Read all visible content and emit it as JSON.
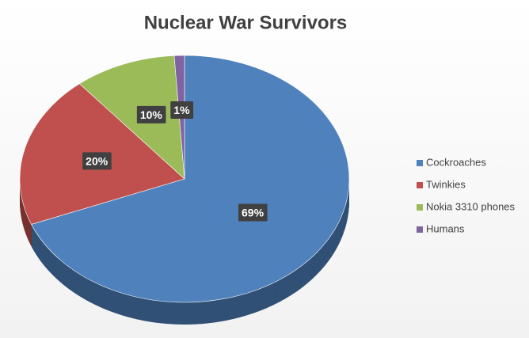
{
  "chart_data": {
    "type": "pie",
    "title": "Nuclear War Survivors",
    "categories": [
      "Cockroaches",
      "Twinkies",
      "Nokia 3310 phones",
      "Humans"
    ],
    "values": [
      69,
      20,
      10,
      1
    ],
    "value_labels": [
      "69%",
      "20%",
      "10%",
      "1%"
    ],
    "colors": [
      "#4f81bd",
      "#c0504d",
      "#9bbb59",
      "#8064a2"
    ],
    "legend": "right"
  }
}
